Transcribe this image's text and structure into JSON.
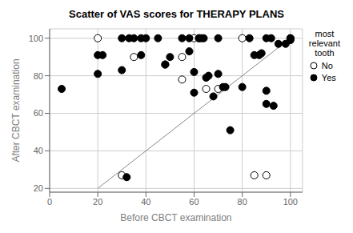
{
  "chart_data": {
    "type": "scatter",
    "title": "Scatter of VAS scores for THERAPY PLANS",
    "x_label": "Before CBCT examination",
    "y_label": "After CBCT examination",
    "legend_title": "most\nrelevant\ntooth",
    "xlim": [
      0,
      105
    ],
    "ylim": [
      18,
      105
    ],
    "xticks": [
      0,
      20,
      40,
      60,
      80,
      100
    ],
    "yticks": [
      20,
      40,
      60,
      80,
      100
    ],
    "grid": true,
    "legend": "upper right",
    "series": [
      {
        "type": "line",
        "color": "#888888",
        "x": [
          20,
          100
        ],
        "values": [
          20,
          100
        ]
      },
      {
        "name": "No",
        "type": "scatter",
        "marker": "circle",
        "color": "white",
        "x": [
          20,
          35,
          55,
          55,
          60,
          62,
          65,
          70,
          80,
          85,
          90,
          30
        ],
        "values": [
          100,
          90,
          90,
          78,
          100,
          100,
          73,
          73,
          100,
          27,
          27,
          27
        ]
      },
      {
        "name": "Yes",
        "type": "scatter",
        "marker": "circle",
        "color": "black",
        "x": [
          5,
          20,
          20,
          22,
          30,
          30,
          32,
          33,
          35,
          38,
          38,
          40,
          45,
          48,
          48,
          50,
          55,
          58,
          58,
          60,
          60,
          62,
          63,
          64,
          65,
          66,
          68,
          70,
          70,
          72,
          73,
          75,
          80,
          83,
          85,
          87,
          88,
          90,
          90,
          90,
          92,
          93,
          95,
          98,
          100,
          100,
          100
        ],
        "values": [
          73,
          81,
          91,
          91,
          100,
          83,
          26,
          100,
          100,
          91,
          100,
          100,
          100,
          86,
          86,
          90,
          100,
          100,
          93,
          82,
          71,
          100,
          100,
          100,
          79,
          80,
          69,
          100,
          81,
          74,
          74,
          51,
          74,
          100,
          91,
          91,
          92,
          72,
          100,
          65,
          100,
          64,
          97,
          97,
          100,
          99,
          100
        ]
      }
    ]
  }
}
